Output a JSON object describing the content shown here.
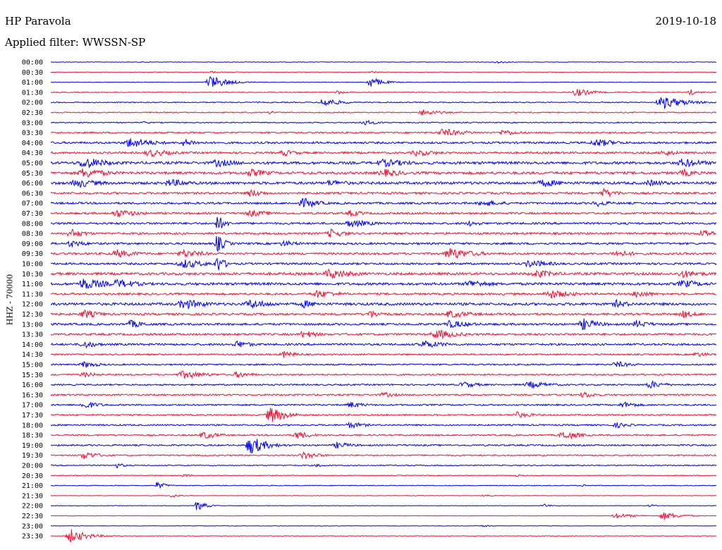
{
  "header": {
    "station": "HP Paravola",
    "date": "2019-10-18",
    "filter": "Applied filter: WWSSN-SP"
  },
  "chart_data": {
    "type": "line",
    "ylabel": "HHZ - 70000",
    "tick_labels": [
      "00:00",
      "00:30",
      "01:00",
      "01:30",
      "02:00",
      "02:30",
      "03:00",
      "03:30",
      "04:00",
      "04:30",
      "05:00",
      "05:30",
      "06:00",
      "06:30",
      "07:00",
      "07:30",
      "08:00",
      "08:30",
      "09:00",
      "09:30",
      "10:00",
      "10:30",
      "11:00",
      "11:30",
      "12:00",
      "12:30",
      "13:00",
      "13:30",
      "14:00",
      "14:30",
      "15:00",
      "15:30",
      "16:00",
      "16:30",
      "17:00",
      "17:30",
      "18:00",
      "18:30",
      "19:00",
      "19:30",
      "20:00",
      "20:30",
      "21:00",
      "21:30",
      "22:00",
      "22:30",
      "23:00",
      "23:30"
    ],
    "trace_colors": [
      "#0000ee",
      "#ee1133"
    ],
    "traces": [
      {
        "level": 1,
        "events": [
          [
            0.14,
            1,
            1
          ],
          [
            0.67,
            2,
            1.5
          ]
        ]
      },
      {
        "level": 1,
        "events": [
          [
            0.24,
            2,
            1
          ],
          [
            0.48,
            2,
            1
          ]
        ]
      },
      {
        "level": 1,
        "events": [
          [
            0.24,
            10,
            2
          ],
          [
            0.48,
            8,
            1.5
          ]
        ]
      },
      {
        "level": 1.5,
        "events": [
          [
            0.43,
            3,
            1
          ],
          [
            0.79,
            6,
            2
          ],
          [
            0.96,
            5,
            1
          ]
        ]
      },
      {
        "level": 2,
        "events": [
          [
            0.41,
            7,
            2
          ],
          [
            0.92,
            9,
            3
          ]
        ]
      },
      {
        "level": 2,
        "events": [
          [
            0.56,
            5,
            2
          ],
          [
            0.33,
            3,
            1
          ]
        ]
      },
      {
        "level": 2,
        "events": [
          [
            0.47,
            4,
            2
          ],
          [
            0.14,
            2,
            1
          ]
        ]
      },
      {
        "level": 3,
        "events": [
          [
            0.59,
            6,
            3
          ],
          [
            0.68,
            5,
            2
          ]
        ]
      },
      {
        "level": 4,
        "events": [
          [
            0.12,
            8,
            3
          ],
          [
            0.2,
            6,
            2
          ],
          [
            0.82,
            6,
            3
          ]
        ]
      },
      {
        "level": 4,
        "events": [
          [
            0.15,
            6,
            3
          ],
          [
            0.35,
            5,
            2
          ],
          [
            0.55,
            5,
            3
          ],
          [
            0.92,
            5,
            2
          ]
        ]
      },
      {
        "level": 5,
        "events": [
          [
            0.05,
            9,
            3
          ],
          [
            0.25,
            6,
            3
          ],
          [
            0.5,
            6,
            4
          ],
          [
            0.95,
            7,
            3
          ]
        ]
      },
      {
        "level": 5,
        "events": [
          [
            0.05,
            8,
            3
          ],
          [
            0.3,
            6,
            3
          ],
          [
            0.5,
            6,
            3
          ],
          [
            0.95,
            6,
            2
          ]
        ]
      },
      {
        "level": 5,
        "events": [
          [
            0.04,
            7,
            3
          ],
          [
            0.18,
            6,
            3
          ],
          [
            0.42,
            5,
            3
          ],
          [
            0.74,
            6,
            3
          ],
          [
            0.9,
            5,
            3
          ]
        ]
      },
      {
        "level": 4,
        "events": [
          [
            0.3,
            6,
            2
          ],
          [
            0.83,
            7,
            2
          ]
        ]
      },
      {
        "level": 4,
        "events": [
          [
            0.38,
            8,
            2
          ],
          [
            0.65,
            5,
            3
          ],
          [
            0.82,
            5,
            2
          ]
        ]
      },
      {
        "level": 4,
        "events": [
          [
            0.1,
            6,
            3
          ],
          [
            0.3,
            5,
            3
          ],
          [
            0.45,
            5,
            2
          ]
        ]
      },
      {
        "level": 4,
        "events": [
          [
            0.25,
            12,
            1
          ],
          [
            0.45,
            6,
            3
          ],
          [
            0.63,
            4,
            2
          ]
        ]
      },
      {
        "level": 4,
        "events": [
          [
            0.03,
            7,
            2
          ],
          [
            0.42,
            7,
            2
          ],
          [
            0.98,
            6,
            2
          ]
        ]
      },
      {
        "level": 4,
        "events": [
          [
            0.03,
            6,
            2
          ],
          [
            0.25,
            14,
            1
          ],
          [
            0.35,
            5,
            2
          ]
        ]
      },
      {
        "level": 4,
        "events": [
          [
            0.1,
            6,
            3
          ],
          [
            0.2,
            6,
            3
          ],
          [
            0.6,
            9,
            3
          ],
          [
            0.85,
            5,
            3
          ]
        ]
      },
      {
        "level": 4,
        "events": [
          [
            0.2,
            7,
            3
          ],
          [
            0.25,
            13,
            1
          ],
          [
            0.72,
            6,
            3
          ]
        ]
      },
      {
        "level": 5,
        "events": [
          [
            0.42,
            8,
            3
          ],
          [
            0.73,
            6,
            3
          ],
          [
            0.95,
            6,
            3
          ]
        ]
      },
      {
        "level": 5,
        "events": [
          [
            0.05,
            9,
            3
          ],
          [
            0.1,
            7,
            3
          ],
          [
            0.63,
            6,
            3
          ],
          [
            0.95,
            6,
            3
          ]
        ]
      },
      {
        "level": 4,
        "events": [
          [
            0.4,
            6,
            3
          ],
          [
            0.75,
            7,
            3
          ],
          [
            0.88,
            6,
            2
          ]
        ]
      },
      {
        "level": 5,
        "events": [
          [
            0.2,
            8,
            3
          ],
          [
            0.3,
            7,
            3
          ],
          [
            0.38,
            6,
            2
          ],
          [
            0.85,
            6,
            2
          ]
        ]
      },
      {
        "level": 4,
        "events": [
          [
            0.05,
            7,
            2
          ],
          [
            0.48,
            6,
            2
          ],
          [
            0.6,
            6,
            3
          ],
          [
            0.95,
            6,
            2
          ]
        ]
      },
      {
        "level": 4,
        "events": [
          [
            0.12,
            6,
            2
          ],
          [
            0.6,
            6,
            3
          ],
          [
            0.8,
            9,
            2
          ],
          [
            0.88,
            6,
            2
          ]
        ]
      },
      {
        "level": 4,
        "events": [
          [
            0.38,
            6,
            2
          ],
          [
            0.58,
            7,
            3
          ]
        ]
      },
      {
        "level": 4,
        "events": [
          [
            0.05,
            6,
            2
          ],
          [
            0.28,
            6,
            2
          ],
          [
            0.56,
            6,
            3
          ]
        ]
      },
      {
        "level": 3,
        "events": [
          [
            0.35,
            5,
            2
          ],
          [
            0.97,
            4,
            2
          ]
        ]
      },
      {
        "level": 3,
        "events": [
          [
            0.05,
            5,
            2
          ],
          [
            0.85,
            5,
            2
          ]
        ]
      },
      {
        "level": 3,
        "events": [
          [
            0.05,
            4,
            2
          ],
          [
            0.2,
            6,
            3
          ],
          [
            0.28,
            5,
            2
          ]
        ]
      },
      {
        "level": 3,
        "events": [
          [
            0.62,
            5,
            2
          ],
          [
            0.72,
            5,
            3
          ],
          [
            0.9,
            6,
            2
          ]
        ]
      },
      {
        "level": 3,
        "events": [
          [
            0.5,
            4,
            2
          ],
          [
            0.8,
            5,
            2
          ]
        ]
      },
      {
        "level": 3,
        "events": [
          [
            0.05,
            6,
            2
          ],
          [
            0.45,
            5,
            2
          ],
          [
            0.86,
            5,
            2
          ]
        ]
      },
      {
        "level": 3,
        "events": [
          [
            0.33,
            12,
            2
          ],
          [
            0.7,
            5,
            2
          ]
        ]
      },
      {
        "level": 3,
        "events": [
          [
            0.45,
            5,
            2
          ],
          [
            0.85,
            4,
            2
          ]
        ]
      },
      {
        "level": 3,
        "events": [
          [
            0.23,
            6,
            2
          ],
          [
            0.37,
            6,
            2
          ],
          [
            0.77,
            7,
            2
          ]
        ]
      },
      {
        "level": 3,
        "events": [
          [
            0.3,
            14,
            2
          ],
          [
            0.43,
            5,
            2
          ]
        ]
      },
      {
        "level": 2.5,
        "events": [
          [
            0.05,
            6,
            2
          ],
          [
            0.38,
            6,
            2
          ]
        ]
      },
      {
        "level": 2,
        "events": [
          [
            0.1,
            4,
            1
          ],
          [
            0.4,
            3,
            1
          ]
        ]
      },
      {
        "level": 1.5,
        "events": [
          [
            0.2,
            3,
            1
          ],
          [
            0.7,
            2,
            1
          ]
        ]
      },
      {
        "level": 1.5,
        "events": [
          [
            0.16,
            6,
            1
          ],
          [
            0.8,
            2,
            1
          ]
        ]
      },
      {
        "level": 1,
        "events": [
          [
            0.18,
            3,
            1
          ],
          [
            0.65,
            2,
            1
          ]
        ]
      },
      {
        "level": 1,
        "events": [
          [
            0.22,
            8,
            1
          ],
          [
            0.74,
            3,
            1
          ],
          [
            0.9,
            2,
            1
          ]
        ]
      },
      {
        "level": 1,
        "events": [
          [
            0.85,
            4,
            2
          ],
          [
            0.92,
            6,
            2
          ]
        ]
      },
      {
        "level": 1,
        "events": [
          [
            0.65,
            2,
            1
          ]
        ]
      },
      {
        "level": 1,
        "events": [
          [
            0.03,
            10,
            2
          ]
        ]
      }
    ]
  }
}
